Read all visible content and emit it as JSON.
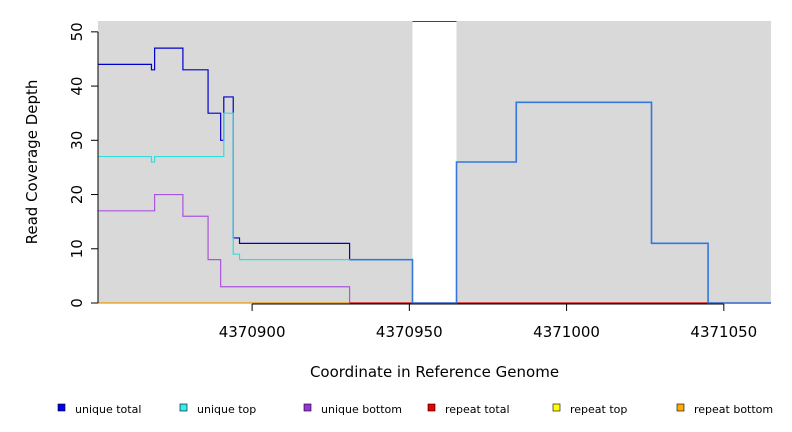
{
  "chart_data": {
    "type": "line",
    "xlabel": "Coordinate in Reference Genome",
    "ylabel": "Read Coverage Depth",
    "xlim": [
      4370851,
      4371065
    ],
    "ylim": [
      0,
      52
    ],
    "x_ticks": [
      4370900,
      4370950,
      4371000,
      4371050
    ],
    "y_ticks": [
      0,
      10,
      20,
      30,
      40,
      50
    ],
    "gap_regions": [
      [
        4370951,
        4370965
      ]
    ],
    "grid": false,
    "legend_position": "bottom",
    "series": [
      {
        "name": "unique total",
        "color": "#0000cc",
        "points": [
          [
            4370851,
            44
          ],
          [
            4370868,
            44
          ],
          [
            4370868,
            43
          ],
          [
            4370869,
            43
          ],
          [
            4370869,
            47
          ],
          [
            4370878,
            47
          ],
          [
            4370878,
            43
          ],
          [
            4370886,
            43
          ],
          [
            4370886,
            35
          ],
          [
            4370890,
            35
          ],
          [
            4370890,
            30
          ],
          [
            4370891,
            30
          ],
          [
            4370891,
            38
          ],
          [
            4370894,
            38
          ],
          [
            4370894,
            12
          ],
          [
            4370896,
            12
          ],
          [
            4370896,
            11
          ],
          [
            4370931,
            11
          ],
          [
            4370931,
            8
          ],
          [
            4370951,
            8
          ]
        ]
      },
      {
        "name": "unique top",
        "color": "#33dddd",
        "points": [
          [
            4370851,
            27
          ],
          [
            4370868,
            27
          ],
          [
            4370868,
            26
          ],
          [
            4370869,
            26
          ],
          [
            4370869,
            27
          ],
          [
            4370891,
            27
          ],
          [
            4370891,
            35
          ],
          [
            4370894,
            35
          ],
          [
            4370894,
            9
          ],
          [
            4370896,
            9
          ],
          [
            4370896,
            8
          ],
          [
            4370951,
            8
          ]
        ]
      },
      {
        "name": "unique bottom",
        "color": "#aa55dd",
        "points": [
          [
            4370851,
            17
          ],
          [
            4370869,
            17
          ],
          [
            4370869,
            20
          ],
          [
            4370878,
            20
          ],
          [
            4370878,
            16
          ],
          [
            4370886,
            16
          ],
          [
            4370886,
            8
          ],
          [
            4370890,
            8
          ],
          [
            4370890,
            3
          ],
          [
            4370931,
            3
          ],
          [
            4370931,
            0
          ]
        ]
      },
      {
        "name": "repeat total",
        "color": "#dd0000",
        "points": [
          [
            4370931,
            0
          ],
          [
            4371065,
            0
          ]
        ]
      },
      {
        "name": "repeat top",
        "color": "#dddd00",
        "points": []
      },
      {
        "name": "repeat bottom",
        "color": "#ee9900",
        "points": [
          [
            4370851,
            0
          ],
          [
            4370931,
            0
          ]
        ]
      },
      {
        "name": "",
        "color": "#3377dd",
        "points": [
          [
            4370931,
            8
          ],
          [
            4370951,
            8
          ],
          [
            4370951,
            0
          ],
          [
            4370965,
            0
          ],
          [
            4370965,
            26
          ],
          [
            4370984,
            26
          ],
          [
            4370984,
            37
          ],
          [
            4371027,
            37
          ],
          [
            4371027,
            11
          ],
          [
            4371045,
            11
          ],
          [
            4371045,
            0
          ],
          [
            4371065,
            0
          ]
        ]
      }
    ],
    "legend": [
      {
        "label": "unique total",
        "color": "#0000ee"
      },
      {
        "label": "unique top",
        "color": "#33eeee"
      },
      {
        "label": "unique bottom",
        "color": "#9933dd"
      },
      {
        "label": "repeat total",
        "color": "#ee0000"
      },
      {
        "label": "repeat top",
        "color": "#ffff00"
      },
      {
        "label": "repeat bottom",
        "color": "#ffaa00"
      }
    ]
  }
}
